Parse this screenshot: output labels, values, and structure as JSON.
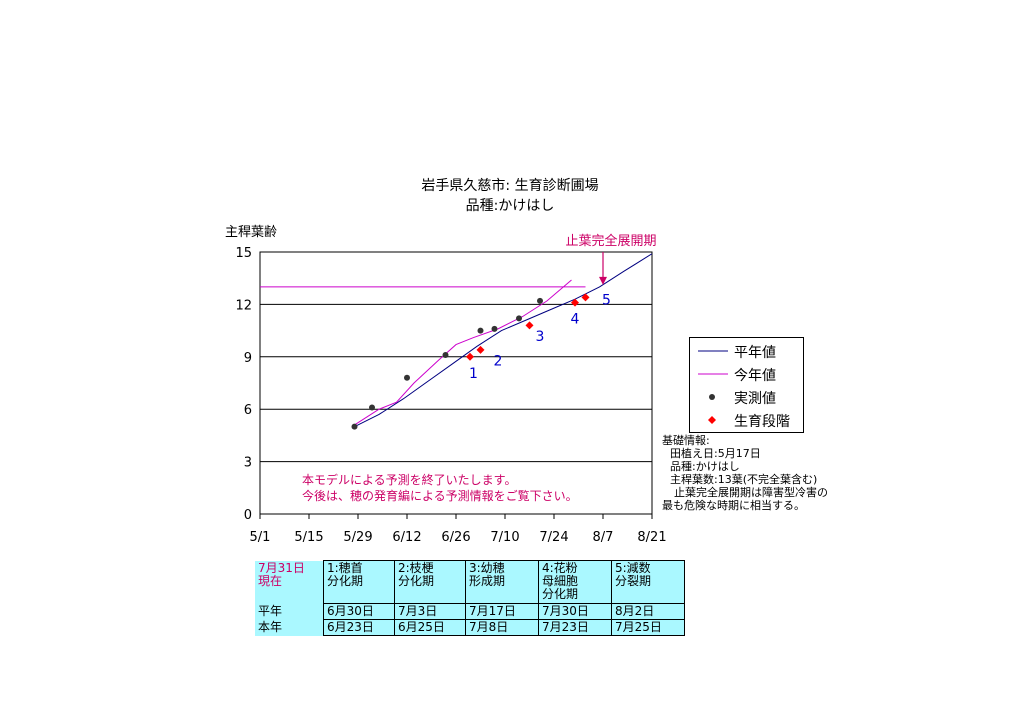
{
  "title_line1": "岩手県久慈市: 生育診断圃場",
  "title_line2": "品種:かけはし",
  "colors": {
    "normal_line": "#000080",
    "this_year_line": "#cc00cc",
    "measured": "#333333",
    "stage": "#ff0000",
    "annotation": "#cc0066",
    "stage_numbers": "#0000cc",
    "table_bg": "#aaf8ff"
  },
  "chart_data": {
    "type": "line",
    "ylabel": "主稈葉齢",
    "ylim": [
      0,
      15
    ],
    "yticks": [
      "0",
      "3",
      "6",
      "9",
      "12",
      "15"
    ],
    "xlim": [
      "5/1",
      "8/21"
    ],
    "xticks": [
      "5/1",
      "5/15",
      "5/29",
      "6/12",
      "6/26",
      "7/10",
      "7/24",
      "8/7",
      "8/21"
    ],
    "grid": "horizontal",
    "legend_position": "right",
    "series": [
      {
        "name": "平年値",
        "kind": "line",
        "x": [
          "5/28",
          "6/4",
          "6/11",
          "6/18",
          "6/25",
          "7/2",
          "7/9",
          "7/16",
          "7/23",
          "7/30",
          "8/6",
          "8/13",
          "8/21"
        ],
        "y": [
          5.0,
          5.7,
          6.6,
          7.6,
          8.6,
          9.6,
          10.5,
          11.1,
          11.7,
          12.3,
          13.0,
          13.9,
          14.9
        ]
      },
      {
        "name": "今年値",
        "kind": "line",
        "x": [
          "5/28",
          "6/4",
          "6/9",
          "6/14",
          "6/21",
          "6/26",
          "7/1",
          "7/8",
          "7/15",
          "7/22",
          "7/29"
        ],
        "y": [
          5.1,
          6.0,
          6.4,
          7.5,
          8.8,
          9.7,
          10.1,
          10.6,
          11.3,
          12.2,
          13.4
        ],
        "flat_value": 13,
        "flat_from": "5/1",
        "flat_to": "8/2"
      },
      {
        "name": "実測値",
        "kind": "points",
        "x": [
          "5/28",
          "6/2",
          "6/12",
          "6/23",
          "7/3",
          "7/7",
          "7/14",
          "7/20"
        ],
        "y": [
          5.0,
          6.1,
          7.8,
          9.1,
          10.5,
          10.6,
          11.2,
          12.2
        ]
      },
      {
        "name": "生育段階",
        "kind": "diamonds",
        "x": [
          "6/30",
          "7/3",
          "7/17",
          "7/30",
          "8/2"
        ],
        "y": [
          9.0,
          9.4,
          10.8,
          12.1,
          12.4
        ]
      }
    ],
    "stage_labels": [
      {
        "text": "1",
        "x": "7/1",
        "y": 7.8
      },
      {
        "text": "2",
        "x": "7/8",
        "y": 8.5
      },
      {
        "text": "3",
        "x": "7/20",
        "y": 9.9
      },
      {
        "text": "4",
        "x": "7/30",
        "y": 10.9
      },
      {
        "text": "5",
        "x": "8/8",
        "y": 12.0
      }
    ],
    "annotation": {
      "text": "止葉完全展開期",
      "arrow_x": "8/7",
      "arrow_y": 13
    }
  },
  "legend": [
    "平年値",
    "今年値",
    "実測値",
    "生育段階"
  ],
  "info": {
    "heading": "基礎情報:",
    "line1": "田植え日:5月17日",
    "line2": "品種:かけはし",
    "line3": "主稈葉数:13葉(不完全葉含む)",
    "line4": "止葉完全展開期は障害型冷害の",
    "line5": "最も危険な時期に相当する。"
  },
  "note": {
    "line1": "本モデルによる予測を終了いたします。",
    "line2": "今後は、穂の発育編による予測情報をご覧下さい。"
  },
  "table": {
    "today1": "7月31日",
    "today2": "現在",
    "stages": [
      {
        "l1": "1:穂首",
        "l2": "分化期",
        "l3": ""
      },
      {
        "l1": "2:枝梗",
        "l2": "分化期",
        "l3": ""
      },
      {
        "l1": "3:幼穂",
        "l2": "形成期",
        "l3": ""
      },
      {
        "l1": "4:花粉",
        "l2": "母細胞",
        "l3": "分化期"
      },
      {
        "l1": "5:減数",
        "l2": "分裂期",
        "l3": ""
      }
    ],
    "rows": [
      {
        "label": "平年",
        "values": [
          "6月30日",
          "7月3日",
          "7月17日",
          "7月30日",
          "8月2日"
        ]
      },
      {
        "label": "本年",
        "values": [
          "6月23日",
          "6月25日",
          "7月8日",
          "7月23日",
          "7月25日"
        ]
      }
    ]
  }
}
